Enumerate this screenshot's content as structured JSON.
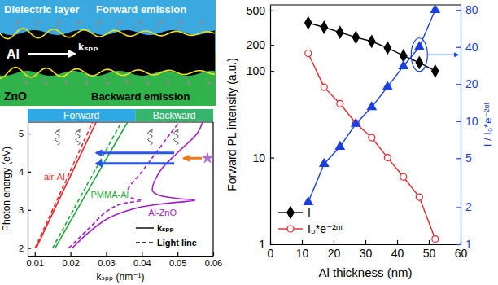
{
  "schematic": {
    "labels": {
      "dielectric": "Dielectric layer",
      "forward": "Forward emission",
      "metal": "Al",
      "wavevector": "kₛₚₚ",
      "substrate": "ZnO",
      "backward": "Backward emission"
    }
  },
  "chart_data": [
    {
      "type": "line",
      "x_label": "kₛₚₚ (nm⁻¹)",
      "y_label": "Photon energy (eV)",
      "xlim": [
        0.008,
        0.06
      ],
      "xticks": [
        0.01,
        0.02,
        0.03,
        0.04,
        0.05,
        0.06
      ],
      "ylim": [
        1.8,
        5.3
      ],
      "yticks": [
        2,
        3,
        4,
        5
      ],
      "grid": false,
      "annotations": [
        "Forward",
        "Backward"
      ],
      "legend": "bottom-right",
      "legend_entries": [
        {
          "label": "kₛₚₚ",
          "line_style": "solid"
        },
        {
          "label": "Light line",
          "line_style": "dashed"
        }
      ],
      "series": [
        {
          "name": "air-Al",
          "color": "#e8262a",
          "curves": [
            {
              "line_style": "solid",
              "x": [
                0.0104,
                0.0185,
                0.0272
              ],
              "values": [
                2,
                3.6,
                5.3
              ]
            },
            {
              "line_style": "dashed",
              "x": [
                0.0101,
                0.0179,
                0.0262
              ],
              "values": [
                2,
                3.6,
                5.3
              ]
            }
          ]
        },
        {
          "name": "PMMA-Al",
          "color": "#1fa83c",
          "curves": [
            {
              "line_style": "solid",
              "x": [
                0.0157,
                0.0255,
                0.036
              ],
              "values": [
                2,
                3.6,
                5.3
              ]
            },
            {
              "line_style": "dashed",
              "x": [
                0.015,
                0.0243,
                0.0343
              ],
              "values": [
                2,
                3.6,
                5.3
              ]
            }
          ]
        },
        {
          "name": "Al-ZnO",
          "color": "#a020c8",
          "curves": [
            {
              "line_style": "solid",
              "x": [
                0.0205,
                0.025,
                0.03,
                0.035,
                0.04,
                0.045,
                0.05,
                0.055,
                0.05,
                0.045,
                0.043,
                0.045,
                0.05,
                0.0555,
                0.057
              ],
              "values": [
                2,
                2.4,
                2.75,
                2.95,
                3.08,
                3.15,
                3.2,
                3.25,
                3.3,
                3.38,
                3.5,
                4.0,
                4.5,
                5.0,
                5.3
              ]
            },
            {
              "line_style": "dashed",
              "x": [
                0.0195,
                0.025,
                0.03,
                0.034,
                0.04,
                0.037,
                0.036,
                0.04,
                0.044,
                0.048,
                0.0505
              ],
              "values": [
                2,
                2.5,
                2.95,
                3.15,
                3.25,
                3.32,
                3.5,
                4.0,
                4.5,
                5.0,
                5.3
              ]
            }
          ]
        }
      ]
    },
    {
      "type": "line",
      "x_label": "Al thickness (nm)",
      "y_label": "Forward PL intensity (a.u.)",
      "y2_label": "I / I₀*e⁻²ᵅᵗ",
      "log": "y",
      "grid": false,
      "xlim": [
        0,
        60
      ],
      "xticks": [
        0,
        10,
        20,
        30,
        40,
        50,
        60
      ],
      "ylim": [
        1,
        580
      ],
      "yticks": [
        1,
        10,
        100,
        200,
        500
      ],
      "y2lim": [
        1,
        88
      ],
      "y2ticks": [
        1,
        2,
        5,
        10,
        20,
        40,
        80
      ],
      "legend": "bottom-left",
      "x": [
        12,
        17,
        22,
        27,
        32,
        37,
        42,
        47,
        52
      ],
      "series": [
        {
          "name": "I",
          "color": "#000000",
          "marker": "diamond",
          "line_style": "solid",
          "values": [
            360,
            320,
            280,
            245,
            220,
            185,
            150,
            125,
            100
          ]
        },
        {
          "name": "I₀*e⁻²ᵅᵗ",
          "color": "#e8262a",
          "marker": "circle-open",
          "line_style": "solid",
          "values": [
            160,
            65,
            42,
            25,
            17,
            10,
            6,
            3.5,
            1.15
          ]
        },
        {
          "color": "#1a3fe0",
          "marker": "triangle",
          "line_style": "solid",
          "axis": "y2",
          "values": [
            2.2,
            4.5,
            6.2,
            9.5,
            13,
            19,
            28,
            40,
            80
          ]
        }
      ]
    }
  ]
}
